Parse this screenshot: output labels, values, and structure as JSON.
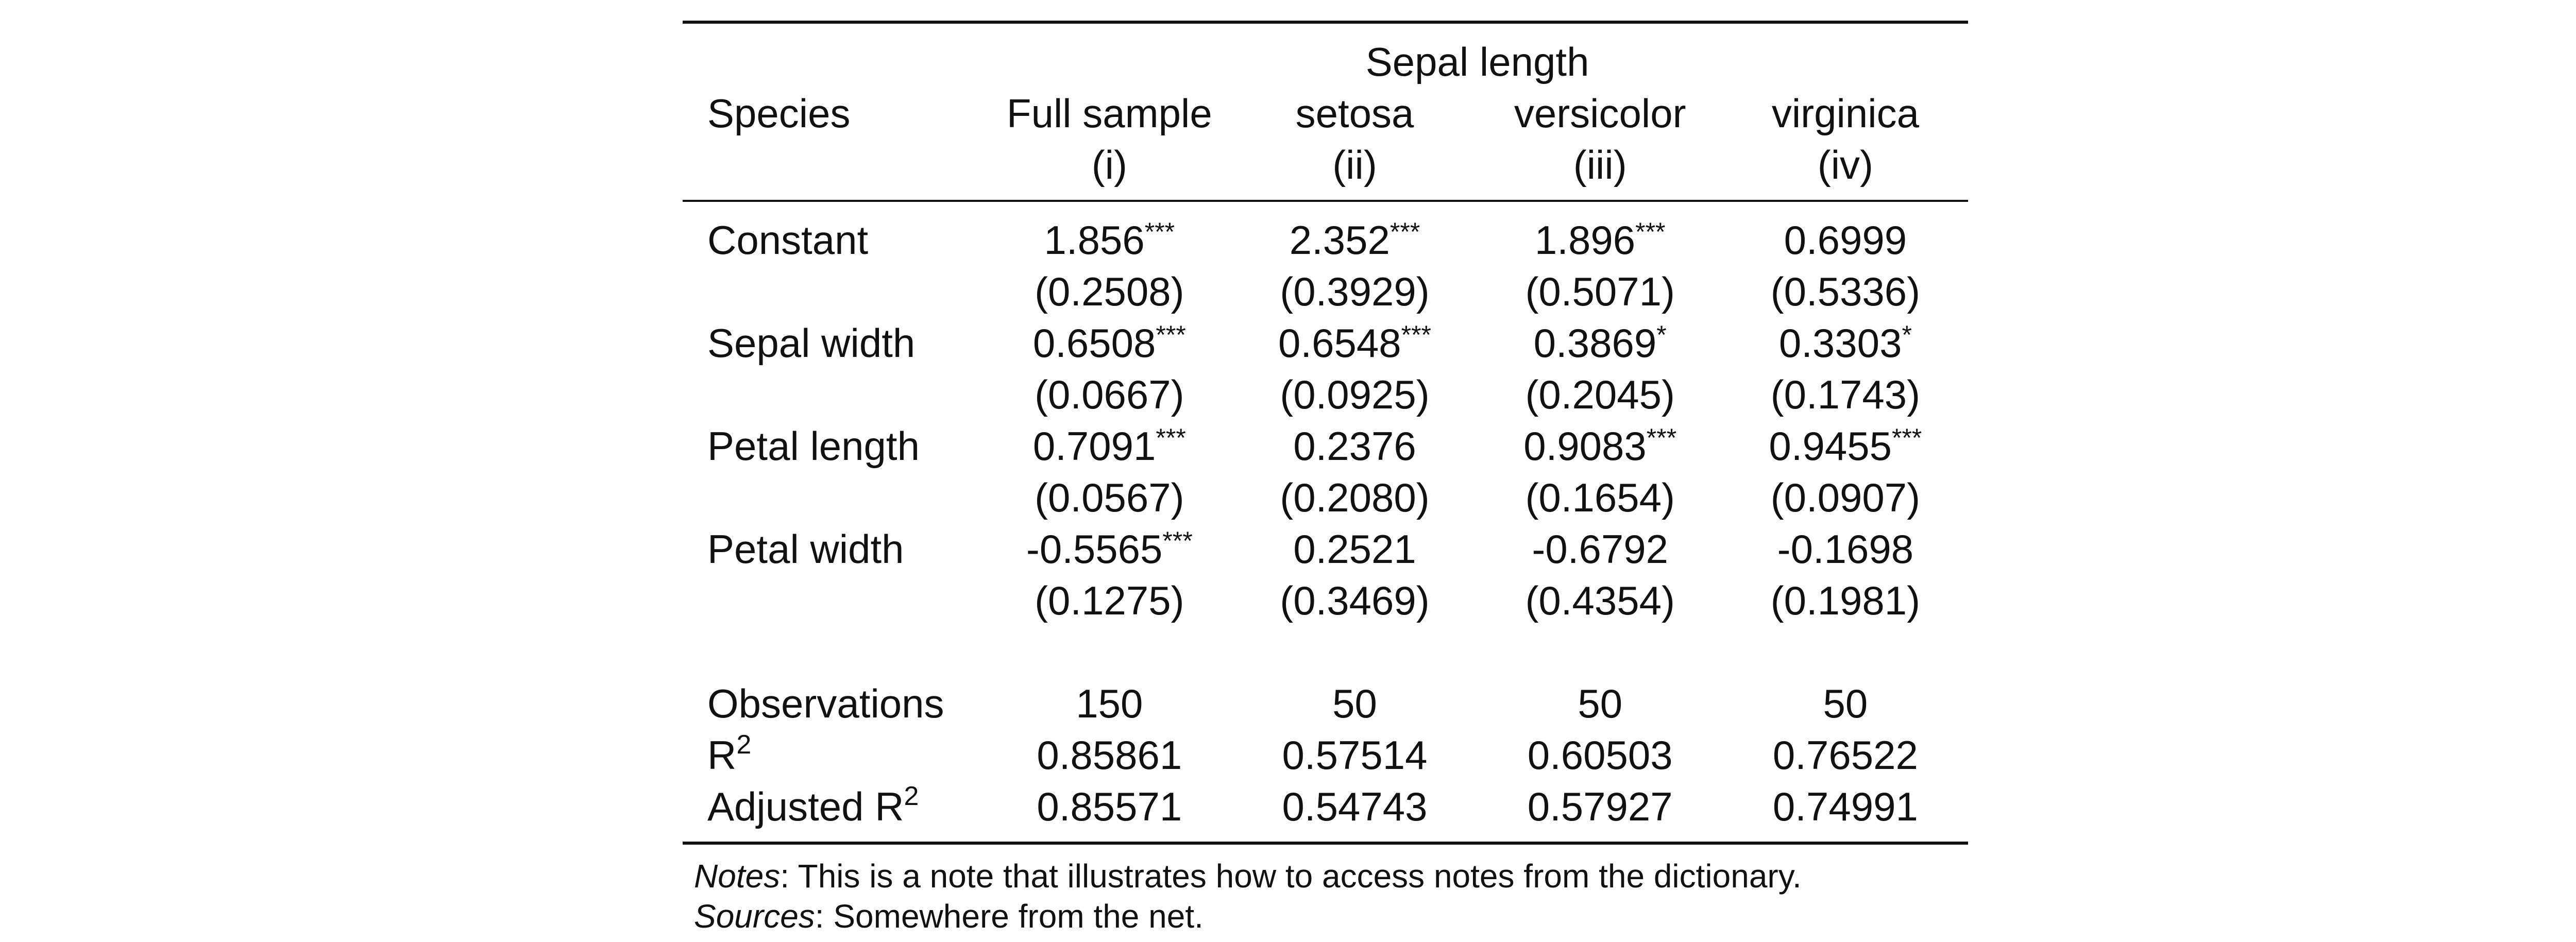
{
  "table": {
    "dep_var": "Sepal length",
    "stub_header": "Species",
    "columns": [
      {
        "name": "Full sample",
        "num": "(i)"
      },
      {
        "name": "setosa",
        "num": "(ii)"
      },
      {
        "name": "versicolor",
        "num": "(iii)"
      },
      {
        "name": "virginica",
        "num": "(iv)"
      }
    ],
    "rows": [
      {
        "label": "Constant",
        "coef": [
          {
            "v": "1.856",
            "s": "***"
          },
          {
            "v": "2.352",
            "s": "***"
          },
          {
            "v": "1.896",
            "s": "***"
          },
          {
            "v": "0.6999",
            "s": ""
          }
        ],
        "se": [
          "(0.2508)",
          "(0.3929)",
          "(0.5071)",
          "(0.5336)"
        ]
      },
      {
        "label": "Sepal width",
        "coef": [
          {
            "v": "0.6508",
            "s": "***"
          },
          {
            "v": "0.6548",
            "s": "***"
          },
          {
            "v": "0.3869",
            "s": "*"
          },
          {
            "v": "0.3303",
            "s": "*"
          }
        ],
        "se": [
          "(0.0667)",
          "(0.0925)",
          "(0.2045)",
          "(0.1743)"
        ]
      },
      {
        "label": "Petal length",
        "coef": [
          {
            "v": "0.7091",
            "s": "***"
          },
          {
            "v": "0.2376",
            "s": ""
          },
          {
            "v": "0.9083",
            "s": "***"
          },
          {
            "v": "0.9455",
            "s": "***"
          }
        ],
        "se": [
          "(0.0567)",
          "(0.2080)",
          "(0.1654)",
          "(0.0907)"
        ]
      },
      {
        "label": "Petal width",
        "coef": [
          {
            "v": "-0.5565",
            "s": "***"
          },
          {
            "v": "0.2521",
            "s": ""
          },
          {
            "v": "-0.6792",
            "s": ""
          },
          {
            "v": "-0.1698",
            "s": ""
          }
        ],
        "se": [
          "(0.1275)",
          "(0.3469)",
          "(0.4354)",
          "(0.1981)"
        ]
      }
    ],
    "stats": [
      {
        "label": "Observations",
        "sup": "",
        "values": [
          "150",
          "50",
          "50",
          "50"
        ]
      },
      {
        "label": "R",
        "sup": "2",
        "values": [
          "0.85861",
          "0.57514",
          "0.60503",
          "0.76522"
        ]
      },
      {
        "label": "Adjusted R",
        "sup": "2",
        "values": [
          "0.85571",
          "0.54743",
          "0.57927",
          "0.74991"
        ]
      }
    ]
  },
  "notes": {
    "notes_label": "Notes",
    "notes_text": ": This is a note that illustrates how to access notes from the dictionary.",
    "sources_label": "Sources",
    "sources_text": ": Somewhere from the net."
  }
}
